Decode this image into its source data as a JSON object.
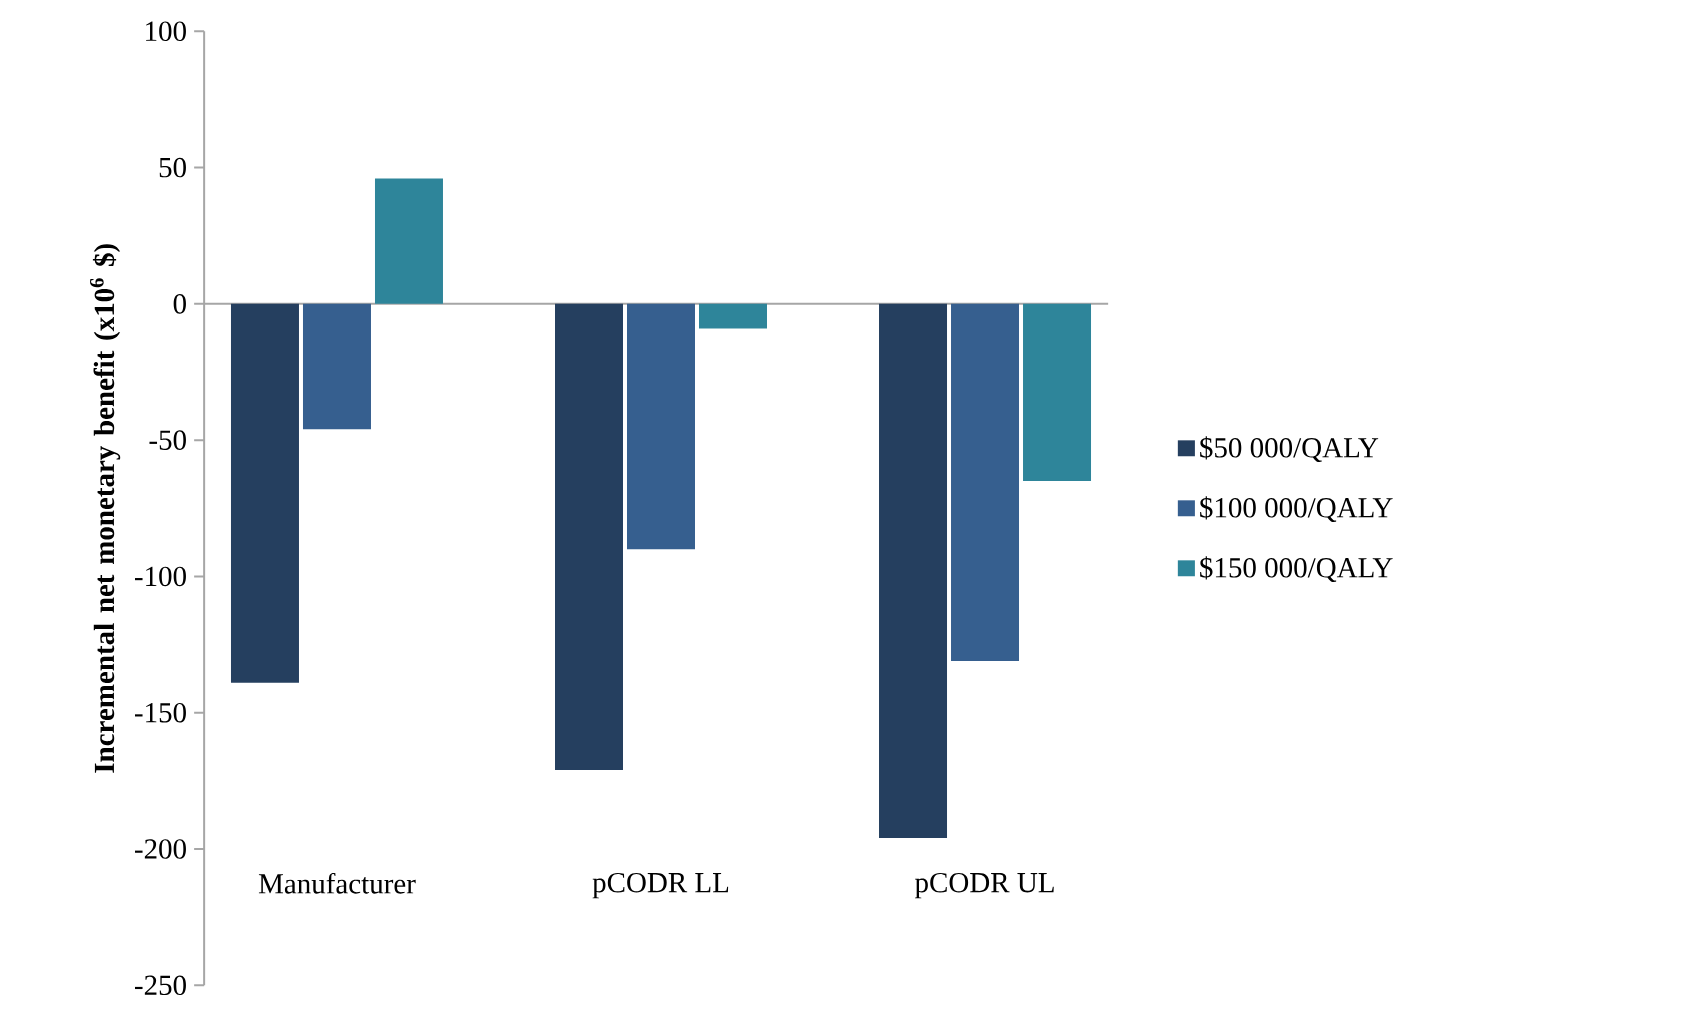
{
  "chart_data": {
    "type": "bar",
    "ylabel": "Incremental net monetary benefit (x10$^{6}$ $)",
    "categories": [
      "Manufacturer",
      "pCODR LL",
      "pCODR UL"
    ],
    "series": [
      {
        "name": "$50 000/QALY",
        "color": "#253f5f",
        "values": [
          -139,
          -171,
          -196
        ]
      },
      {
        "name": "$100 000/QALY",
        "color": "#365f8f",
        "values": [
          -46,
          -90,
          -131
        ]
      },
      {
        "name": "$150 000/QALY",
        "color": "#2e859a",
        "values": [
          46,
          -9,
          -65
        ]
      }
    ],
    "ylim": [
      -250,
      100
    ],
    "yticks": [
      -250,
      -200,
      -150,
      -100,
      -50,
      0,
      50,
      100
    ],
    "legend": "right"
  }
}
